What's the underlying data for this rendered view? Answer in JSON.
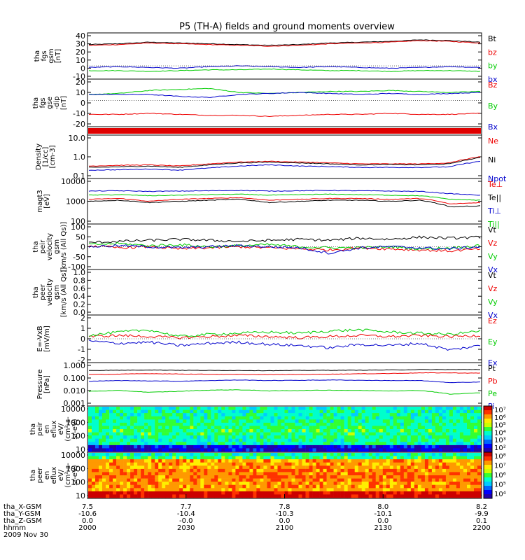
{
  "title": "P5 (TH-A) fields and ground moments overview",
  "colors": {
    "black": "#000000",
    "red": "#ee0000",
    "green": "#00cc00",
    "blue": "#0000cc"
  },
  "panels": [
    {
      "ylabel": [
        "tha",
        "fgs",
        "gsm",
        "[nT]"
      ],
      "yticks": [
        "40",
        "30",
        "20",
        "10",
        "0",
        "-10"
      ],
      "legend": [
        [
          "Bt",
          "black"
        ],
        [
          "bz",
          "red"
        ],
        [
          "by",
          "green"
        ],
        [
          "bx",
          "blue"
        ]
      ]
    },
    {
      "ylabel": [
        "tha",
        "fgs",
        "gse",
        "-dip",
        "[nT]"
      ],
      "yticks": [
        "20",
        "10",
        "0",
        "-10",
        "-20"
      ],
      "legend": [
        [
          "Bz",
          "red"
        ],
        [
          "By",
          "green"
        ],
        [
          "Bx",
          "blue"
        ]
      ]
    },
    {
      "ylabel": [],
      "yticks": [],
      "legend": []
    },
    {
      "ylabel": [
        "Density",
        "[1/cc]",
        "[cm-3]"
      ],
      "yticks": [
        "10.0",
        "1.0",
        "0.1"
      ],
      "legend": [
        [
          "Ne",
          "red"
        ],
        [
          "Ni",
          "black"
        ],
        [
          "Npot",
          "blue"
        ]
      ]
    },
    {
      "ylabel": [
        "magt3",
        "[eV]"
      ],
      "yticks": [
        "10000",
        "1000",
        "100"
      ],
      "legend": [
        [
          "Te⊥",
          "red"
        ],
        [
          "Te||",
          "black"
        ],
        [
          "Ti⊥",
          "blue"
        ],
        [
          "Ti||",
          "green"
        ]
      ]
    },
    {
      "ylabel": [
        "tha",
        "peir",
        "velocity",
        "gsm",
        "[km/s (All Qs)]"
      ],
      "yticks": [
        "100",
        "50",
        "0",
        "-50",
        "-100"
      ],
      "legend": [
        [
          "Vt",
          "black"
        ],
        [
          "Vz",
          "red"
        ],
        [
          "Vy",
          "green"
        ],
        [
          "Vx",
          "blue"
        ]
      ]
    },
    {
      "ylabel": [
        "tha",
        "peer",
        "velocity",
        "gsm",
        "[km/s (All Qs)]"
      ],
      "yticks": [
        "1.0",
        "0.8",
        "0.6",
        "0.4",
        "0.2",
        "0.0"
      ],
      "legend": [
        [
          "Vt",
          "black"
        ],
        [
          "Vz",
          "red"
        ],
        [
          "Vy",
          "green"
        ],
        [
          "Vx",
          "blue"
        ]
      ]
    },
    {
      "ylabel": [
        "E=-VxB",
        "[mV/m]"
      ],
      "yticks": [
        "2",
        "1",
        "0",
        "-1",
        "-2"
      ],
      "legend": [
        [
          "Ez",
          "red"
        ],
        [
          "Ey",
          "green"
        ],
        [
          "Ex",
          "blue"
        ]
      ]
    },
    {
      "ylabel": [
        "Pressure",
        "[nPa]"
      ],
      "yticks": [
        "1.000",
        "0.100",
        "0.010",
        "0.001"
      ],
      "legend": [
        [
          "Pt",
          "black"
        ],
        [
          "Pb",
          "red"
        ],
        [
          "Pe",
          "green"
        ],
        [
          "Pi",
          "blue"
        ]
      ]
    },
    {
      "ylabel": [
        "tha",
        "peir",
        "en",
        "eflux",
        "eV/",
        "(cm²-s-",
        "sr-eV)"
      ],
      "yticks": [
        "10000",
        "1000",
        "100",
        "10"
      ],
      "legend": []
    },
    {
      "ylabel": [
        "tha",
        "peer",
        "en",
        "eflux",
        "eV/",
        "(cm²-s-",
        "sr-eV)"
      ],
      "yticks": [
        "10000",
        "1000",
        "100",
        "10"
      ],
      "legend": []
    }
  ],
  "colorbars": [
    {
      "labels": [
        "10⁷",
        "10⁶",
        "10⁵",
        "10⁴",
        "10³",
        "10²"
      ]
    },
    {
      "labels": [
        "10⁸",
        "10⁷",
        "10⁶",
        "10⁵",
        "10⁴"
      ]
    }
  ],
  "footer": {
    "rows": [
      {
        "label": "tha_X-GSM",
        "values": [
          "7.5",
          "7.7",
          "7.8",
          "8.0",
          "8.2"
        ]
      },
      {
        "label": "tha_Y-GSM",
        "values": [
          "-10.6",
          "-10.4",
          "-10.3",
          "-10.1",
          "-9.9"
        ]
      },
      {
        "label": "tha_Z-GSM",
        "values": [
          "0.0",
          "-0.0",
          "0.0",
          "0.0",
          "0.1"
        ]
      },
      {
        "label": "hhmm",
        "values": [
          "2000",
          "2030",
          "2100",
          "2130",
          "2200"
        ]
      }
    ],
    "date": "2009 Nov 30"
  },
  "chart_data": {
    "type": "line",
    "title": "P5 (TH-A) fields and ground moments overview",
    "x_ticks_hhmm": [
      "2000",
      "2030",
      "2100",
      "2130",
      "2200"
    ],
    "x_range": [
      "2000",
      "2200"
    ],
    "panels": [
      {
        "name": "tha fgs gsm [nT]",
        "ylim": [
          -15,
          40
        ],
        "series": [
          {
            "name": "Bt",
            "values": [
              27,
              28,
              30,
              29,
              28,
              27,
              26,
              27,
              29,
              30,
              31,
              33,
              32,
              30
            ]
          },
          {
            "name": "bz",
            "values": [
              26,
              27,
              29,
              28,
              27,
              26,
              25,
              26,
              28,
              29,
              30,
              32,
              31,
              29
            ]
          },
          {
            "name": "by",
            "values": [
              -6,
              -6,
              -7,
              -6,
              -5,
              -5,
              -4,
              -5,
              -6,
              -6,
              -7,
              -6,
              -6,
              -7
            ]
          },
          {
            "name": "bx",
            "values": [
              -2,
              -1,
              -2,
              -3,
              -1,
              0,
              -1,
              -2,
              -1,
              -2,
              -3,
              -2,
              -1,
              -2
            ]
          }
        ]
      },
      {
        "name": "tha fgs gse-dip [nT]",
        "ylim": [
          -25,
          20
        ],
        "series": [
          {
            "name": "Bz",
            "values": [
              -14,
              -14,
              -13,
              -14,
              -15,
              -15,
              -16,
              -15,
              -14,
              -14,
              -13,
              -14,
              -14,
              -13
            ]
          },
          {
            "name": "By",
            "values": [
              6,
              7,
              10,
              11,
              12,
              8,
              7,
              8,
              9,
              9,
              10,
              9,
              8,
              9
            ]
          },
          {
            "name": "Bx",
            "values": [
              6,
              6,
              6,
              4,
              3,
              6,
              7,
              8,
              7,
              6,
              7,
              6,
              7,
              8
            ]
          }
        ]
      },
      {
        "name": "Density [1/cc] [cm-3]",
        "ylim": [
          0.1,
          10
        ],
        "log": true,
        "series": [
          {
            "name": "Ne",
            "values": [
              0.35,
              0.38,
              0.4,
              0.35,
              0.45,
              0.55,
              0.6,
              0.55,
              0.5,
              0.45,
              0.45,
              0.45,
              0.5,
              1.0
            ]
          },
          {
            "name": "Ni",
            "values": [
              0.3,
              0.32,
              0.35,
              0.3,
              0.4,
              0.5,
              0.55,
              0.5,
              0.45,
              0.4,
              0.42,
              0.4,
              0.45,
              0.9
            ]
          },
          {
            "name": "Npot",
            "values": [
              0.22,
              0.23,
              0.25,
              0.22,
              0.28,
              0.35,
              0.4,
              0.35,
              0.33,
              0.3,
              0.3,
              0.3,
              0.32,
              0.6
            ]
          }
        ]
      },
      {
        "name": "magt3 [eV]",
        "ylim": [
          50,
          10000
        ],
        "log": true,
        "series": [
          {
            "name": "Te⊥",
            "values": [
              900,
              1000,
              700,
              900,
              1000,
              1100,
              800,
              900,
              1000,
              1000,
              900,
              1000,
              500,
              600
            ]
          },
          {
            "name": "Te||",
            "values": [
              700,
              800,
              600,
              700,
              800,
              900,
              600,
              700,
              800,
              800,
              700,
              800,
              350,
              400
            ]
          },
          {
            "name": "Ti⊥",
            "values": [
              2500,
              2600,
              2400,
              2500,
              2600,
              2700,
              2500,
              2600,
              2700,
              2600,
              2500,
              2400,
              1800,
              1500
            ]
          },
          {
            "name": "Ti||",
            "values": [
              1500,
              1600,
              1400,
              1500,
              1600,
              1700,
              1500,
              1600,
              1700,
              1600,
              1500,
              1400,
              900,
              800
            ]
          }
        ]
      },
      {
        "name": "tha peir velocity gsm [km/s (All Qs)]",
        "ylim": [
          -100,
          100
        ],
        "series": [
          {
            "name": "Vt",
            "values": [
              20,
              25,
              30,
              35,
              30,
              25,
              30,
              35,
              30,
              40,
              35,
              45,
              40,
              45
            ]
          },
          {
            "name": "Vz",
            "values": [
              5,
              -5,
              0,
              -10,
              -5,
              0,
              -5,
              -10,
              -15,
              -5,
              -10,
              -15,
              -20,
              -10
            ]
          },
          {
            "name": "Vy",
            "values": [
              10,
              15,
              5,
              10,
              0,
              5,
              10,
              0,
              -5,
              -5,
              0,
              -10,
              -5,
              5
            ]
          },
          {
            "name": "Vx",
            "values": [
              0,
              5,
              0,
              -5,
              0,
              5,
              0,
              -5,
              -30,
              -5,
              0,
              -5,
              -10,
              0
            ]
          }
        ]
      },
      {
        "name": "tha peer velocity gsm [km/s (All Qs)]",
        "ylim": [
          0,
          1
        ],
        "series": []
      },
      {
        "name": "E=-VxB [mV/m]",
        "ylim": [
          -2,
          2
        ],
        "series": [
          {
            "name": "Ez",
            "values": [
              0.2,
              0.3,
              0.2,
              0.1,
              0.2,
              0.3,
              0.2,
              0.1,
              0.2,
              0.3,
              0.2,
              0.3,
              0.2,
              0.3
            ]
          },
          {
            "name": "Ey",
            "values": [
              0.3,
              0.6,
              0.8,
              0.2,
              0.4,
              0.5,
              0.6,
              0.5,
              0.7,
              0.8,
              0.6,
              0.5,
              0.4,
              0.7
            ]
          },
          {
            "name": "Ex",
            "values": [
              -0.2,
              -0.4,
              -0.3,
              -0.6,
              -0.4,
              -0.3,
              -0.5,
              -0.6,
              -0.8,
              -0.5,
              -0.6,
              -0.4,
              -1.0,
              -0.6
            ]
          }
        ]
      },
      {
        "name": "Pressure [nPa]",
        "ylim": [
          0.001,
          2
        ],
        "log": true,
        "series": [
          {
            "name": "Pt",
            "values": [
              0.6,
              0.62,
              0.65,
              0.62,
              0.6,
              0.6,
              0.58,
              0.6,
              0.62,
              0.63,
              0.65,
              0.7,
              0.7,
              0.72
            ]
          },
          {
            "name": "Pb",
            "values": [
              0.28,
              0.3,
              0.33,
              0.31,
              0.29,
              0.28,
              0.27,
              0.28,
              0.3,
              0.32,
              0.34,
              0.38,
              0.38,
              0.36
            ]
          },
          {
            "name": "Pe",
            "values": [
              0.012,
              0.014,
              0.01,
              0.012,
              0.015,
              0.016,
              0.013,
              0.014,
              0.015,
              0.014,
              0.013,
              0.014,
              0.007,
              0.009
            ]
          },
          {
            "name": "Pi",
            "values": [
              0.08,
              0.09,
              0.085,
              0.08,
              0.09,
              0.1,
              0.09,
              0.095,
              0.1,
              0.095,
              0.09,
              0.09,
              0.06,
              0.07
            ]
          }
        ]
      }
    ]
  }
}
